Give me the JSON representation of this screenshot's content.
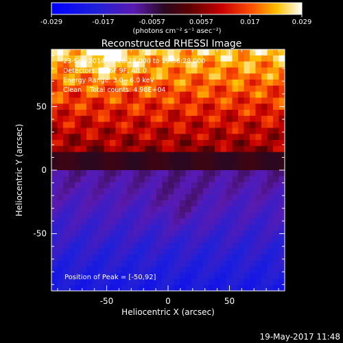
{
  "colorbar": {
    "ticks": [
      "-0.029",
      "-0.017",
      "-0.0057",
      "0.0057",
      "0.017",
      "0.029"
    ],
    "min": -0.029,
    "max": 0.029,
    "units_label": "(photons cm⁻² s⁻¹ asec⁻²)"
  },
  "chart_data": {
    "type": "heatmap",
    "title": "Reconstructed RHESSI Image",
    "xlabel": "Heliocentric X (arcsec)",
    "ylabel": "Heliocentric Y (arcsec)",
    "xlim": [
      -95,
      95
    ],
    "ylim": [
      -95,
      95
    ],
    "x_ticks": [
      -50,
      0,
      50
    ],
    "y_ticks": [
      -50,
      0,
      50
    ],
    "annotations": [
      "23-Sep-2014 19:26:28.000 to 19:36:28.000",
      "Detectors: 5F 6F 9F, Att 0",
      "Energy Range: 3.0 - 6.0 keV",
      "Clean    Total counts: 4.98E+04"
    ],
    "peak_label": "Position of Peak = [-50,92]",
    "peak_position": [
      -50,
      92
    ],
    "description_colormap": "RHESSI blue-purple-red-yellow-white",
    "value_range": [
      -0.029,
      0.029
    ],
    "upper_region_level": "high (red to yellow/white, peak near top)",
    "lower_region_level": "low (purple to blue)"
  },
  "footer": {
    "timestamp": "19-May-2017 11:48"
  }
}
